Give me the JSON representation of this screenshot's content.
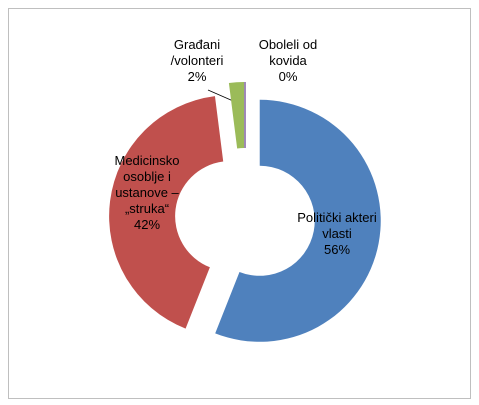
{
  "chart_data": {
    "type": "pie",
    "categories": [
      "Politički akteri vlasti",
      "Medicinsko osoblje i ustanove – „struka“",
      "Građani /volonteri",
      "Oboleli od kovida"
    ],
    "values": [
      56,
      42,
      2,
      0
    ],
    "value_labels": [
      "56%",
      "42%",
      "2%",
      "0%"
    ],
    "colors": [
      "#4f81bd",
      "#c0504d",
      "#9bbb59",
      "#8064a2"
    ],
    "donut": true
  }
}
